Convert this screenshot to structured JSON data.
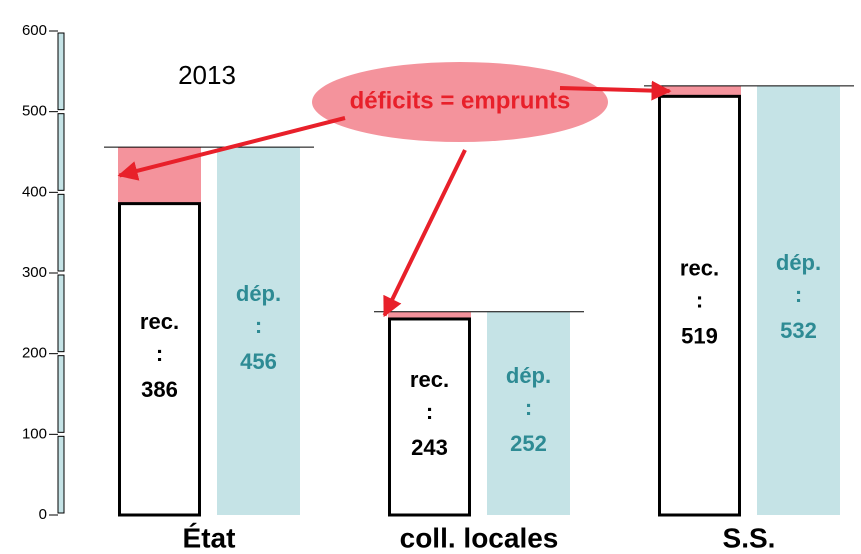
{
  "chart_data": {
    "type": "bar",
    "annotations": [
      "2013",
      "déficits = emprunts"
    ],
    "categories": [
      "État",
      "coll. locales",
      "S.S."
    ],
    "separator": ":",
    "series": [
      {
        "name": "rec.",
        "color": "#ffffff",
        "values": [
          386,
          243,
          519
        ]
      },
      {
        "name": "dép.",
        "color": "#c5e3e6",
        "values": [
          456,
          252,
          532
        ]
      }
    ],
    "deficit_color": "#f4939c",
    "ylim": [
      0,
      600
    ],
    "yticks": [
      0,
      100,
      200,
      300,
      400,
      500,
      600
    ]
  }
}
